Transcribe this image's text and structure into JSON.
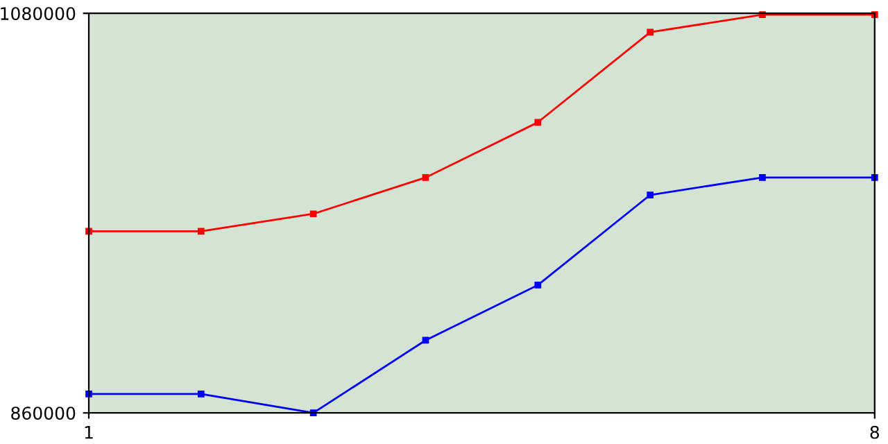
{
  "chart_data": {
    "type": "line",
    "x": [
      1,
      2,
      3,
      4,
      5,
      6,
      7,
      8
    ],
    "series": [
      {
        "color": "#ff0000",
        "values": [
          960000,
          960000,
          969600,
          989600,
          1020000,
          1069600,
          1079300,
          1079300
        ]
      },
      {
        "color": "#0000ff",
        "values": [
          870400,
          870400,
          860000,
          900000,
          930400,
          980000,
          989600,
          989600
        ]
      }
    ],
    "xlim": [
      1,
      8
    ],
    "ylim": [
      860000,
      1080000
    ],
    "xticks": [
      1,
      8
    ],
    "yticks": [
      860000,
      1080000
    ],
    "marker": "square",
    "line_style": "solid",
    "grid": false,
    "legend": false
  }
}
